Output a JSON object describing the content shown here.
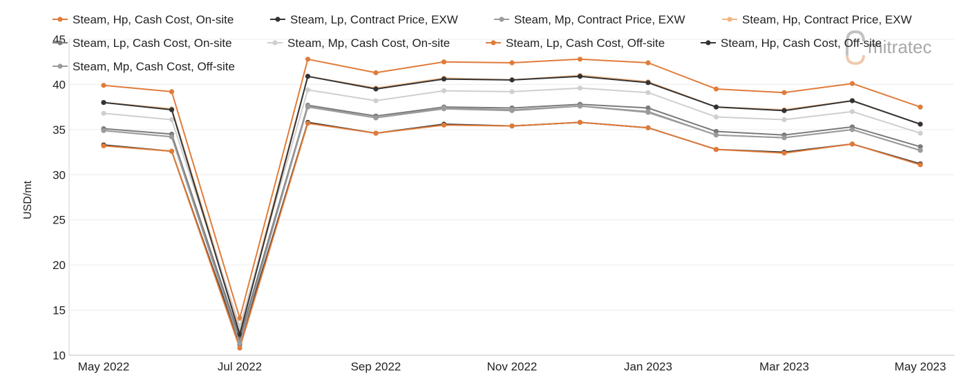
{
  "chart_data": {
    "type": "line",
    "xlabel": "",
    "ylabel": "USD/mt",
    "ylim": [
      10,
      45
    ],
    "yticks": [
      10,
      15,
      20,
      25,
      30,
      35,
      40,
      45
    ],
    "grid": "horizontal",
    "legend_position": "top",
    "x": [
      "May 2022",
      "Jun 2022",
      "Jul 2022",
      "Aug 2022",
      "Sep 2022",
      "Oct 2022",
      "Nov 2022",
      "Dec 2022",
      "Jan 2023",
      "Feb 2023",
      "Mar 2023",
      "Apr 2023",
      "May 2023"
    ],
    "x_tick_labels": [
      "May 2022",
      "Jul 2022",
      "Sep 2022",
      "Nov 2022",
      "Jan 2023",
      "Mar 2023",
      "May 2023"
    ],
    "x_tick_indices": [
      0,
      2,
      4,
      6,
      8,
      10,
      12
    ],
    "series": [
      {
        "name": "Steam, Hp, Cash Cost, On-site",
        "color": "#e07b39",
        "values": [
          39.9,
          39.2,
          14.1,
          42.8,
          41.3,
          42.5,
          42.4,
          42.8,
          42.4,
          39.5,
          39.1,
          40.1,
          37.5
        ]
      },
      {
        "name": "Steam, Lp, Contract Price, EXW",
        "color": "#333333",
        "values": [
          33.3,
          32.6,
          11.2,
          35.8,
          34.6,
          35.6,
          35.4,
          35.8,
          35.2,
          32.8,
          32.5,
          33.4,
          31.2
        ]
      },
      {
        "name": "Steam, Mp, Contract Price, EXW",
        "color": "#9b9b9b",
        "values": [
          34.9,
          34.2,
          11.7,
          37.5,
          36.3,
          37.3,
          37.1,
          37.6,
          36.9,
          34.4,
          34.1,
          35.0,
          32.7
        ]
      },
      {
        "name": "Steam, Hp, Contract Price, EXW",
        "color": "#f0b483",
        "values": [
          38.0,
          37.3,
          12.8,
          40.9,
          39.6,
          40.7,
          40.5,
          41.0,
          40.3,
          37.5,
          37.2,
          38.2,
          35.6
        ]
      },
      {
        "name": "Steam, Lp, Cash Cost, On-site",
        "color": "#7a7a7a",
        "values": [
          35.1,
          34.5,
          11.9,
          37.7,
          36.5,
          37.5,
          37.4,
          37.8,
          37.4,
          34.8,
          34.4,
          35.3,
          33.1
        ]
      },
      {
        "name": "Steam, Mp, Cash Cost, On-site",
        "color": "#cfcfcf",
        "values": [
          36.8,
          36.1,
          13.2,
          39.4,
          38.2,
          39.3,
          39.2,
          39.6,
          39.1,
          36.4,
          36.1,
          37.0,
          34.6
        ]
      },
      {
        "name": "Steam, Lp, Cash Cost, Off-site",
        "color": "#e07b39",
        "values": [
          33.2,
          32.6,
          10.8,
          35.7,
          34.6,
          35.5,
          35.4,
          35.8,
          35.2,
          32.8,
          32.4,
          33.4,
          31.1
        ]
      },
      {
        "name": "Steam, Hp, Cash Cost, Off-site",
        "color": "#333333",
        "values": [
          38.0,
          37.2,
          12.3,
          40.9,
          39.5,
          40.6,
          40.5,
          40.9,
          40.2,
          37.5,
          37.1,
          38.2,
          35.6
        ]
      },
      {
        "name": "Steam, Mp, Cash Cost, Off-site",
        "color": "#9b9b9b",
        "values": [
          34.9,
          34.2,
          11.3,
          37.6,
          36.3,
          37.4,
          37.2,
          37.6,
          37.0,
          34.4,
          34.1,
          35.0,
          32.7
        ]
      }
    ]
  },
  "watermark": {
    "text": "mitratec"
  }
}
